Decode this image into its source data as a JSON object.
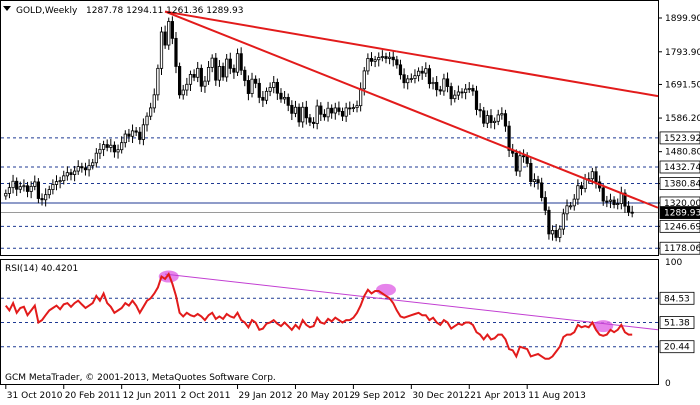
{
  "window": {
    "symbol_label": "GOLD,Weekly",
    "ohlc_label": "1287.78 1294.11 1261.36 1289.93"
  },
  "indicator": {
    "label": "RSI(14) 40.4201"
  },
  "footer": {
    "copyright": "GCM MetaTrader, © 2001-2013, MetaQuotes Software Corp."
  },
  "colors": {
    "background": "#ffffff",
    "candle": "#000000",
    "trendline": "#e21b1b",
    "rsi_line": "#e21b1b",
    "rsi_trendline": "#c23fd2",
    "rsi_highlight": "#e26ee8",
    "level_line": "#1f3a93",
    "grid_border": "#000000"
  },
  "icons": {
    "symbol_menu": "triangle-down-icon"
  },
  "chart_data": [
    {
      "type": "candlestick",
      "title": "GOLD,Weekly",
      "ylim": [
        1160,
        1950
      ],
      "price_ticks": [
        "1899.90",
        "1793.90",
        "1691.50",
        "1586.20",
        "1480.80",
        "1380.84",
        "1320.00",
        "1246.69",
        "1178.06"
      ],
      "level_labels": [
        "1523.92",
        "1432.74",
        "1380.84",
        "1320.00",
        "1289.93",
        "1246.69",
        "1178.06"
      ],
      "horizontal_levels": [
        1523.92,
        1432.74,
        1380.84,
        1320.0,
        1246.69,
        1178.06
      ],
      "current_price": 1289.93,
      "x_labels": [
        "31 Oct 2010",
        "20 Feb 2011",
        "12 Jun 2011",
        "2 Oct 2011",
        "29 Jan 2012",
        "20 May 2012",
        "9 Sep 2012",
        "30 Dec 2012",
        "21 Apr 2013",
        "11 Aug 2013"
      ],
      "closes": [
        1350,
        1368,
        1388,
        1363,
        1371,
        1374,
        1356,
        1372,
        1386,
        1334,
        1330,
        1346,
        1362,
        1378,
        1387,
        1390,
        1405,
        1415,
        1409,
        1420,
        1434,
        1430,
        1424,
        1437,
        1446,
        1476,
        1488,
        1503,
        1494,
        1501,
        1480,
        1487,
        1509,
        1536,
        1529,
        1546,
        1542,
        1519,
        1565,
        1592,
        1618,
        1659,
        1742,
        1856,
        1815,
        1889,
        1836,
        1748,
        1659,
        1674,
        1692,
        1723,
        1714,
        1742,
        1686,
        1702,
        1745,
        1774,
        1705,
        1748,
        1715,
        1771,
        1742,
        1730,
        1788,
        1736,
        1704,
        1663,
        1708,
        1695,
        1651,
        1642,
        1670,
        1682,
        1698,
        1664,
        1646,
        1651,
        1626,
        1601,
        1620,
        1574,
        1620,
        1587,
        1573,
        1569,
        1624,
        1598,
        1590,
        1617,
        1602,
        1618,
        1607,
        1592,
        1618,
        1617,
        1619,
        1625,
        1678,
        1734,
        1773,
        1764,
        1769,
        1776,
        1779,
        1773,
        1777,
        1769,
        1753,
        1722,
        1697,
        1709,
        1710,
        1719,
        1733,
        1727,
        1741,
        1694,
        1698,
        1675,
        1671,
        1709,
        1685,
        1647,
        1658,
        1668,
        1666,
        1677,
        1679,
        1671,
        1613,
        1609,
        1570,
        1594,
        1572,
        1576,
        1596,
        1600,
        1561,
        1485,
        1476,
        1420,
        1468,
        1467,
        1444,
        1387,
        1393,
        1383,
        1337,
        1297,
        1223,
        1234,
        1212,
        1238,
        1286,
        1311,
        1311,
        1332,
        1374,
        1365,
        1395,
        1396,
        1418,
        1386,
        1367,
        1326,
        1325,
        1329,
        1315,
        1318,
        1351,
        1310,
        1291,
        1290
      ],
      "trendlines": [
        {
          "from": "12 Jun 2011 week",
          "to": "11 Aug 2013 week",
          "description": "falling resistance from 2011 high"
        },
        {
          "from": "9 Sep 2012 week",
          "to": "beyond chart",
          "description": "shallow resistance line"
        }
      ]
    },
    {
      "type": "line",
      "title": "RSI(14) 40.4201",
      "ylim": [
        0,
        100
      ],
      "level_labels": [
        "84.53",
        "51.38",
        "20.44"
      ],
      "levels": [
        70,
        50,
        30
      ],
      "series": [
        {
          "name": "RSI(14)",
          "values": [
            64,
            60,
            66,
            58,
            62,
            63,
            56,
            60,
            64,
            50,
            52,
            56,
            60,
            62,
            64,
            61,
            65,
            66,
            63,
            66,
            68,
            65,
            62,
            64,
            66,
            72,
            68,
            74,
            66,
            63,
            58,
            60,
            62,
            66,
            64,
            68,
            64,
            58,
            63,
            68,
            70,
            74,
            79,
            88,
            86,
            90,
            82,
            72,
            58,
            55,
            58,
            56,
            55,
            57,
            55,
            52,
            56,
            58,
            53,
            55,
            53,
            57,
            55,
            54,
            58,
            52,
            50,
            46,
            52,
            50,
            44,
            45,
            49,
            50,
            52,
            49,
            47,
            50,
            47,
            44,
            48,
            45,
            52,
            48,
            46,
            47,
            54,
            50,
            49,
            53,
            51,
            54,
            52,
            50,
            52,
            52,
            54,
            58,
            64,
            72,
            77,
            74,
            76,
            76,
            74,
            72,
            70,
            66,
            60,
            55,
            54,
            55,
            56,
            57,
            58,
            56,
            56,
            52,
            54,
            50,
            48,
            52,
            50,
            45,
            47,
            49,
            48,
            50,
            50,
            48,
            42,
            40,
            36,
            40,
            36,
            37,
            40,
            40,
            36,
            28,
            27,
            22,
            30,
            29,
            28,
            22,
            23,
            24,
            22,
            20,
            20,
            22,
            26,
            30,
            38,
            40,
            40,
            42,
            48,
            46,
            47,
            46,
            50,
            44,
            40,
            39,
            40,
            44,
            42,
            44,
            48,
            42,
            40,
            40
          ]
        }
      ],
      "highlights": [
        "12 Jun 2011 week",
        "9 Sep 2012 week",
        "11 Aug 2013 week"
      ]
    }
  ]
}
